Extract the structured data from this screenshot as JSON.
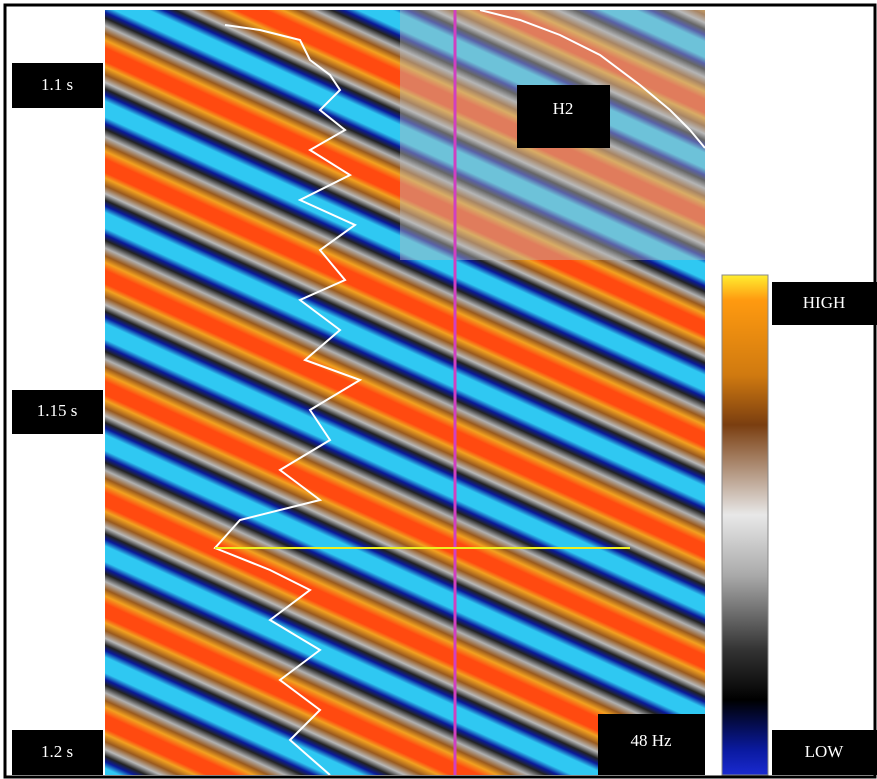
{
  "time_labels": [
    "1.1 s",
    "1.15 s",
    "1.2 s"
  ],
  "horizon_label": "H2",
  "frequency_label": "48 Hz",
  "colorbar": {
    "high": "HIGH",
    "low": "LOW"
  }
}
